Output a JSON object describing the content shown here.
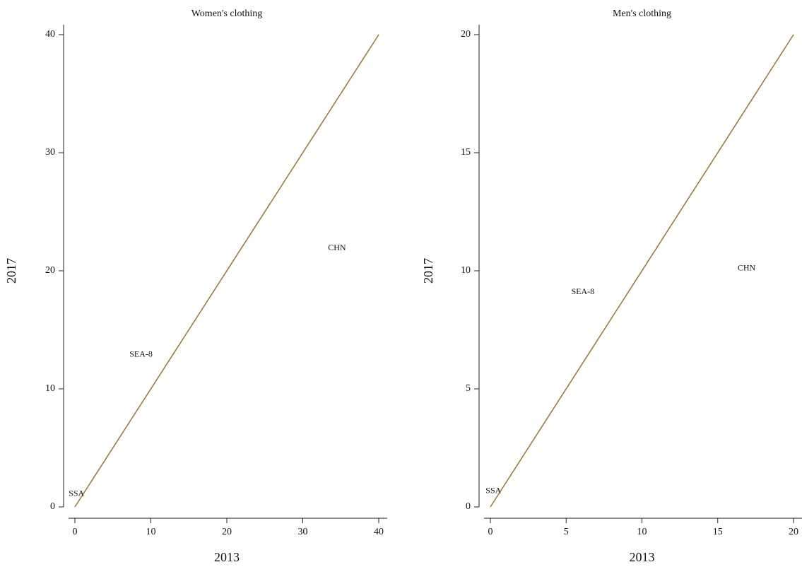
{
  "chart_data": [
    {
      "type": "scatter",
      "title": "Women's clothing",
      "x_label": "2013",
      "y_label": "2017",
      "xlim": [
        0,
        40
      ],
      "ylim": [
        0,
        40
      ],
      "xticks": [
        0,
        10,
        20,
        30,
        40
      ],
      "yticks": [
        0,
        10,
        20,
        30,
        40
      ],
      "points": [
        {
          "label": "SSA",
          "x": 0.2,
          "y": 1.1
        },
        {
          "label": "SEA-8",
          "x": 8.7,
          "y": 12.9
        },
        {
          "label": "CHN",
          "x": 34.5,
          "y": 21.9
        }
      ],
      "reference_line": {
        "x": [
          0,
          40
        ],
        "y": [
          0,
          40
        ],
        "color": "#9a7d3c"
      }
    },
    {
      "type": "scatter",
      "title": "Men's clothing",
      "x_label": "2013",
      "y_label": "2017",
      "xlim": [
        0,
        20
      ],
      "ylim": [
        0,
        20
      ],
      "xticks": [
        0,
        5,
        10,
        15,
        20
      ],
      "yticks": [
        0,
        5,
        10,
        15,
        20
      ],
      "points": [
        {
          "label": "SSA",
          "x": 0.2,
          "y": 0.66
        },
        {
          "label": "SEA-8",
          "x": 6.1,
          "y": 9.1
        },
        {
          "label": "CHN",
          "x": 16.9,
          "y": 10.1
        }
      ],
      "reference_line": {
        "x": [
          0,
          20
        ],
        "y": [
          0,
          20
        ],
        "color": "#9a7d3c"
      }
    }
  ]
}
